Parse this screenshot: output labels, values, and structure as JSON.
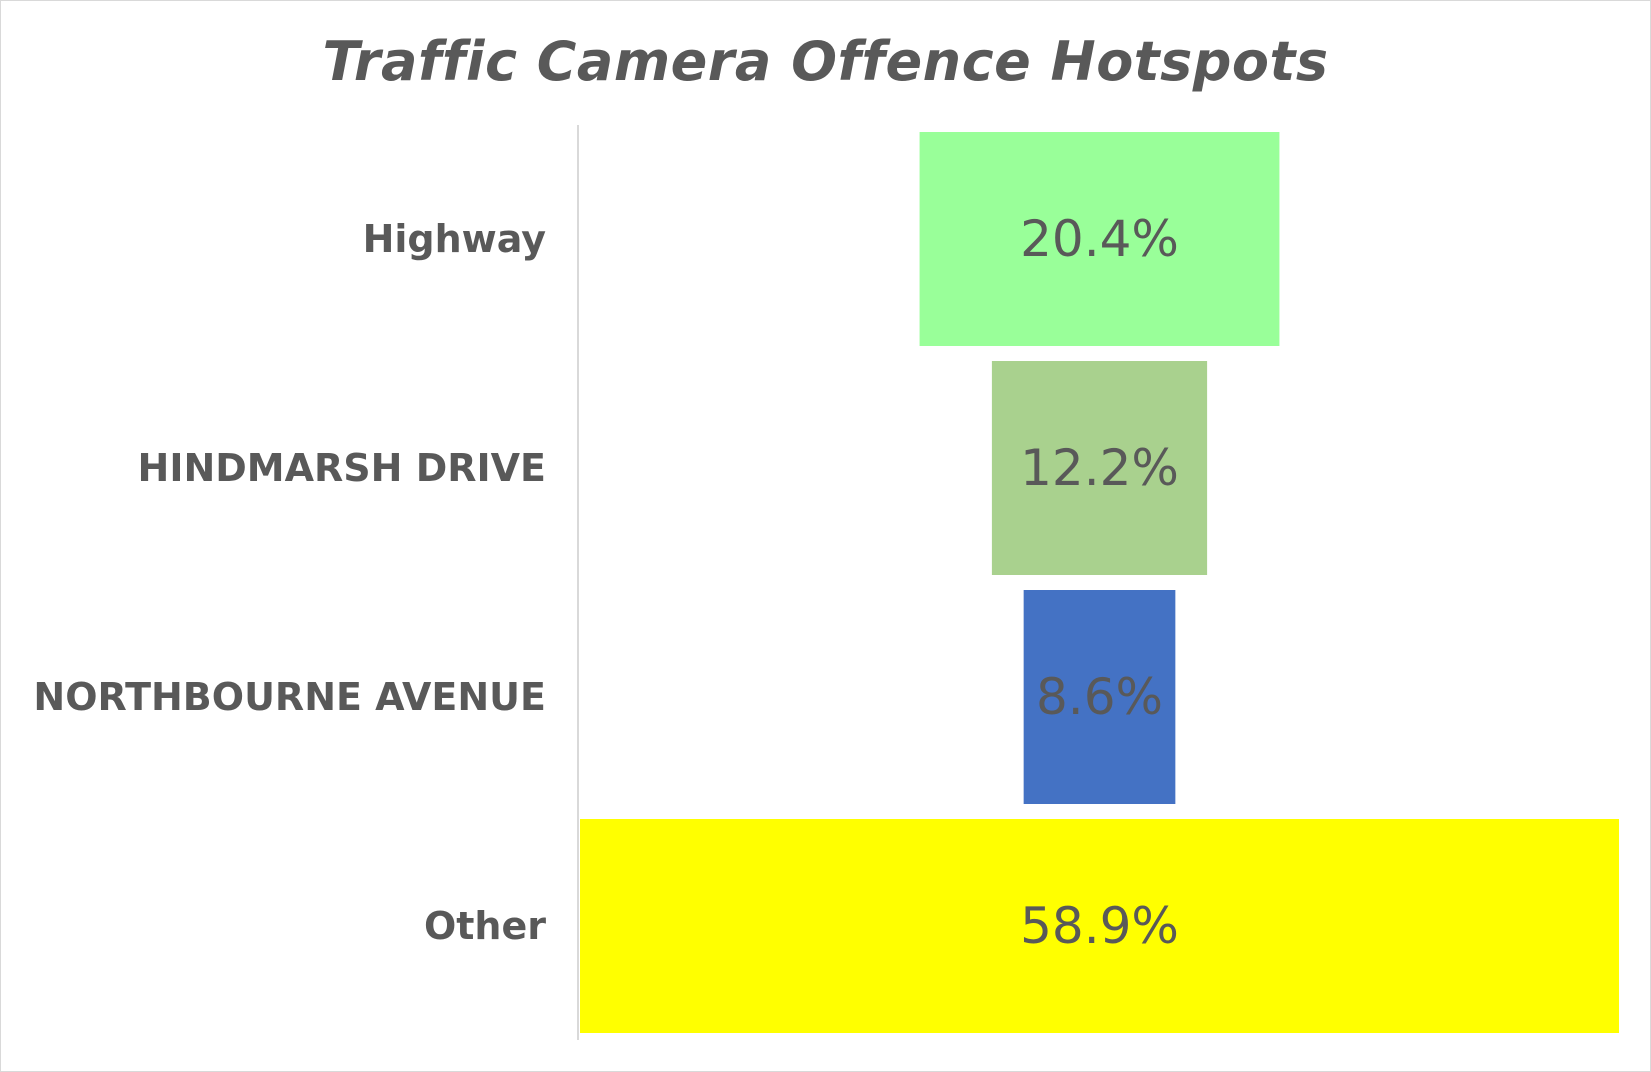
{
  "chart_data": {
    "type": "bar",
    "subtype": "funnel",
    "title": "Traffic Camera Offence Hotspots",
    "xlabel": "",
    "ylabel": "",
    "categories": [
      "Highway",
      "HINDMARSH DRIVE",
      "NORTHBOURNE AVENUE",
      "Other"
    ],
    "values": [
      20.4,
      12.2,
      8.6,
      58.9
    ],
    "value_labels": [
      "20.4%",
      "12.2%",
      "8.6%",
      "58.9%"
    ],
    "unit": "%",
    "colors": [
      "#99ff99",
      "#a9d18e",
      "#4472c4",
      "#ffff00"
    ],
    "grid": false,
    "legend": "none"
  }
}
